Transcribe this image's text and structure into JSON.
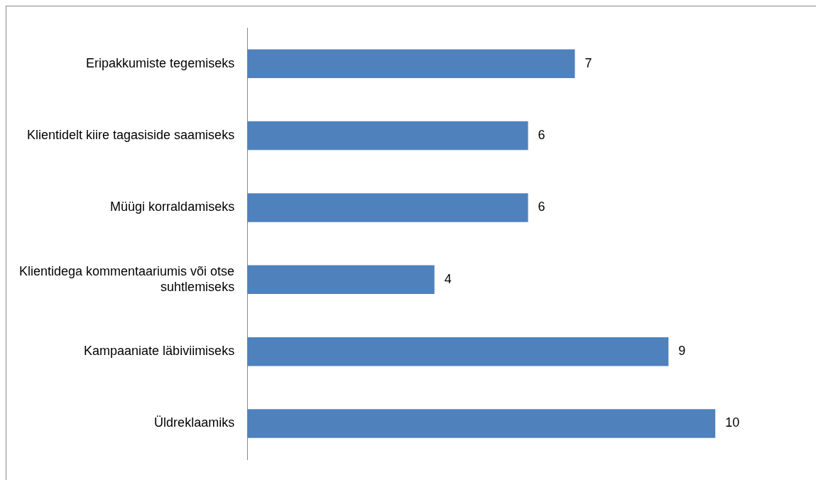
{
  "chart_data": {
    "type": "bar",
    "orientation": "horizontal",
    "categories": [
      "Eripakkumiste tegemiseks",
      "Klientidelt kiire tagasiside saamiseks",
      "Müügi korraldamiseks",
      "Klientidega kommentaariumis või otse suhtlemiseks",
      "Kampaaniate läbiviimiseks",
      "Üldreklaamiks"
    ],
    "values": [
      7,
      6,
      6,
      4,
      9,
      10
    ],
    "color": "#4f81bd",
    "data_labels": true,
    "legend": false
  }
}
